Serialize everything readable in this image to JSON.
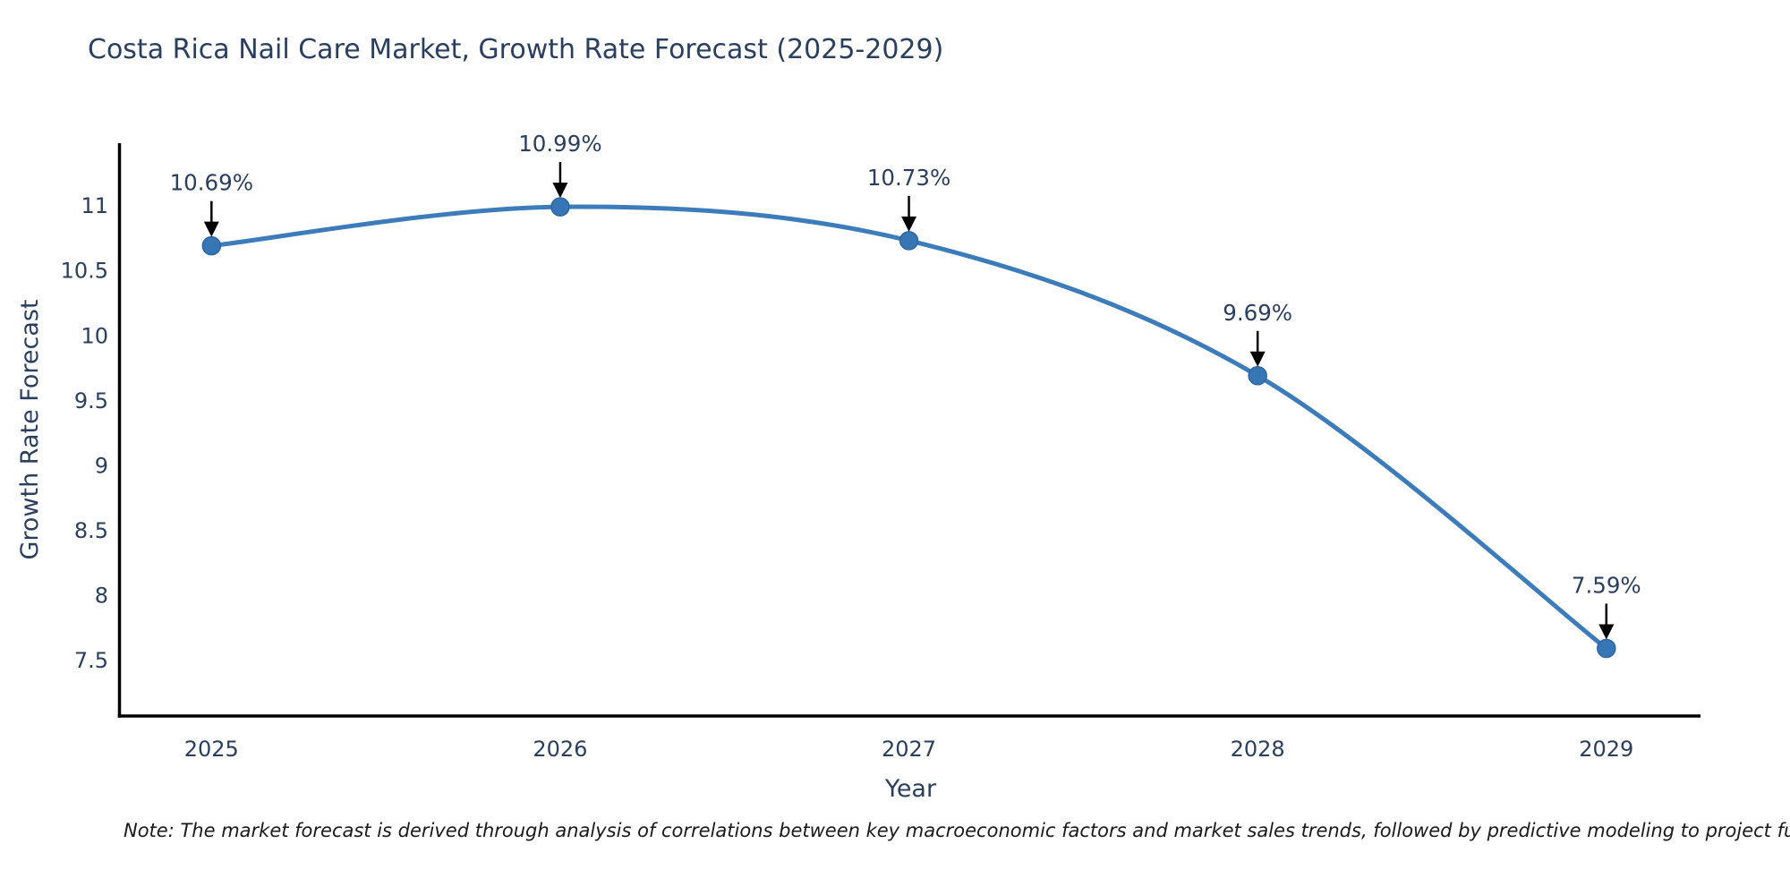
{
  "page": {
    "background": "#ffffff"
  },
  "chart_data": {
    "type": "line",
    "title": "Costa Rica Nail Care Market, Growth Rate Forecast (2025-2029)",
    "xlabel": "Year",
    "ylabel": "Growth Rate Forecast",
    "x": [
      2025,
      2026,
      2027,
      2028,
      2029
    ],
    "values": [
      10.69,
      10.99,
      10.73,
      9.69,
      7.59
    ],
    "point_labels": [
      "10.69%",
      "10.99%",
      "10.73%",
      "9.69%",
      "7.59%"
    ],
    "xtick_labels": [
      "2025",
      "2026",
      "2027",
      "2028",
      "2029"
    ],
    "yticks": [
      7.5,
      8,
      8.5,
      9,
      9.5,
      10,
      10.5,
      11
    ],
    "ytick_labels": [
      "7.5",
      "8",
      "8.5",
      "9",
      "9.5",
      "10",
      "10.5",
      "11"
    ],
    "xlim": [
      2024.74,
      2029.27
    ],
    "ylim": [
      7.07,
      11.48
    ],
    "grid": false,
    "legend": "none",
    "line_shape": "spline",
    "line_color": "#3d7cba",
    "marker_color": "#3676b5",
    "marker_edge_color": "#2e66a3",
    "axis_color": "#000000",
    "text_color": "#2a3f5f",
    "annotation_arrow_color": "#000000"
  },
  "note": {
    "text": "Note: The market forecast is derived through analysis of correlations between key macroeconomic factors and market sales trends, followed by predictive modeling to project future sal"
  }
}
